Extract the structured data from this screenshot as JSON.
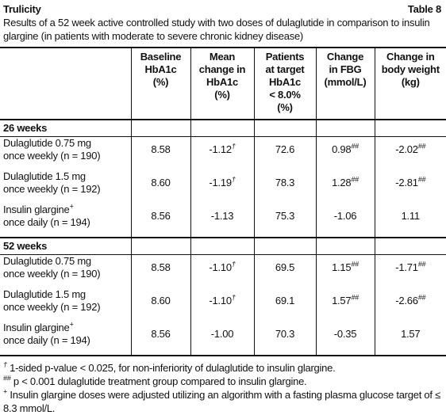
{
  "header": {
    "title": "Trulicity",
    "table_label": "Table 8",
    "caption": "Results of a 52 week active controlled study with two doses of dulaglutide in comparison to insulin glargine (in patients with moderate to severe chronic kidney disease)"
  },
  "table": {
    "columns": [
      "Baseline\nHbA1c\n(%)",
      "Mean\nchange in\nHbA1c\n(%)",
      "Patients\nat target\nHbA1c\n< 8.0%\n(%)",
      "Change\nin FBG\n(mmol/L)",
      "Change in\nbody weight\n(kg)"
    ],
    "sections": [
      {
        "label": "26 weeks",
        "rows": [
          {
            "treatment": "Dulaglutide 0.75 mg",
            "regimen": "once weekly (n = 190)",
            "cells": [
              {
                "text": "8.58"
              },
              {
                "text": "-1.12",
                "sup": "†"
              },
              {
                "text": "72.6"
              },
              {
                "text": "0.98",
                "sup": "##"
              },
              {
                "text": "-2.02",
                "sup": "##"
              }
            ]
          },
          {
            "treatment": "Dulaglutide 1.5 mg",
            "regimen": "once weekly (n = 192)",
            "cells": [
              {
                "text": "8.60"
              },
              {
                "text": "-1.19",
                "sup": "†"
              },
              {
                "text": "78.3"
              },
              {
                "text": "1.28",
                "sup": "##"
              },
              {
                "text": "-2.81",
                "sup": "##"
              }
            ]
          },
          {
            "treatment": "Insulin glargine",
            "treatment_sup": "+",
            "regimen": "once daily (n = 194)",
            "cells": [
              {
                "text": "8.56"
              },
              {
                "text": "-1.13"
              },
              {
                "text": "75.3"
              },
              {
                "text": "-1.06"
              },
              {
                "text": "1.11"
              }
            ]
          }
        ]
      },
      {
        "label": "52 weeks",
        "rows": [
          {
            "treatment": "Dulaglutide 0.75 mg",
            "regimen": "once weekly (n = 190)",
            "cells": [
              {
                "text": "8.58"
              },
              {
                "text": "-1.10",
                "sup": "†"
              },
              {
                "text": "69.5"
              },
              {
                "text": "1.15",
                "sup": "##"
              },
              {
                "text": "-1.71",
                "sup": "##"
              }
            ]
          },
          {
            "treatment": "Dulaglutide 1.5 mg",
            "regimen": "once weekly (n = 192)",
            "cells": [
              {
                "text": "8.60"
              },
              {
                "text": "-1.10",
                "sup": "†"
              },
              {
                "text": "69.1"
              },
              {
                "text": "1.57",
                "sup": "##"
              },
              {
                "text": "-2.66",
                "sup": "##"
              }
            ]
          },
          {
            "treatment": "Insulin glargine",
            "treatment_sup": "+",
            "regimen": "once daily (n = 194)",
            "cells": [
              {
                "text": "8.56"
              },
              {
                "text": "-1.00"
              },
              {
                "text": "70.3"
              },
              {
                "text": "-0.35"
              },
              {
                "text": "1.57"
              }
            ]
          }
        ]
      }
    ]
  },
  "footnotes": [
    {
      "mark": "†",
      "text": " 1-sided p-value < 0.025, for non-inferiority of dulaglutide to insulin glargine."
    },
    {
      "mark": "##",
      "text": " p < 0.001 dulaglutide treatment group compared to insulin glargine."
    },
    {
      "mark": "+",
      "text": " Insulin glargine doses were adjusted utilizing an algorithm with a fasting plasma glucose target of ≤ 8.3 mmol/L."
    }
  ]
}
